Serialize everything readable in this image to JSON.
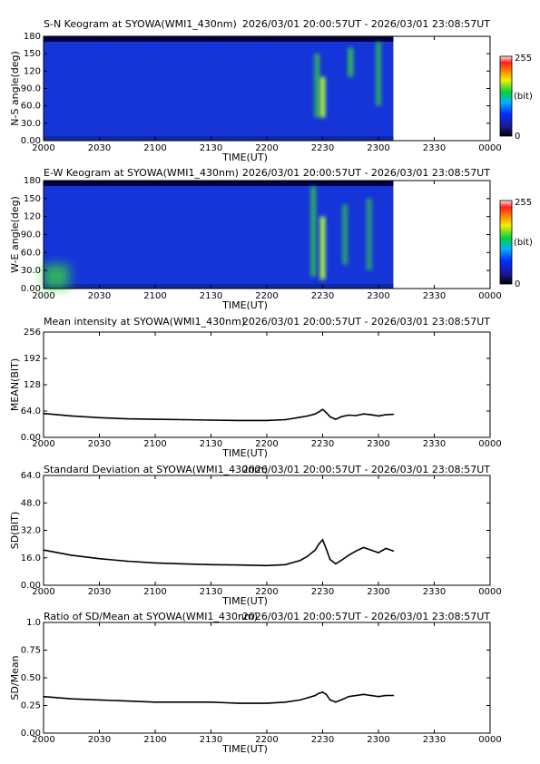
{
  "panels": [
    {
      "type": "keogram",
      "title": "S-N Keogram at SYOWA(WMI1_430nm)",
      "time_range": "2026/03/01 20:00:57UT - 2026/03/01 23:08:57UT",
      "ylabel": "N-S angle(deg)",
      "yticks": [
        "0.00",
        "30.0",
        "60.0",
        "90.0",
        "120",
        "150",
        "180"
      ],
      "xlabel": "TIME(UT)",
      "xticks": [
        "2000",
        "2030",
        "2100",
        "2130",
        "2200",
        "2230",
        "2300",
        "2330",
        "0000"
      ],
      "colorbar": {
        "max": "255",
        "unit": "(bit)",
        "min": "0"
      }
    },
    {
      "type": "keogram",
      "title": "E-W Keogram at SYOWA(WMI1_430nm)",
      "time_range": "2026/03/01 20:00:57UT - 2026/03/01 23:08:57UT",
      "ylabel": "W-E angle(deg)",
      "yticks": [
        "0.00",
        "30.0",
        "60.0",
        "90.0",
        "120",
        "150",
        "180"
      ],
      "xlabel": "TIME(UT)",
      "xticks": [
        "2000",
        "2030",
        "2100",
        "2130",
        "2200",
        "2230",
        "2300",
        "2330",
        "0000"
      ],
      "colorbar": {
        "max": "255",
        "unit": "(bit)",
        "min": "0"
      }
    },
    {
      "type": "line",
      "title": "Mean intensity at SYOWA(WMI1_430nm)",
      "time_range": "2026/03/01 20:00:57UT - 2026/03/01 23:08:57UT",
      "ylabel": "MEAN(BIT)",
      "yticks": [
        "0.00",
        "64.0",
        "128",
        "192",
        "256"
      ],
      "xlabel": "TIME(UT)",
      "xticks": [
        "2000",
        "2030",
        "2100",
        "2130",
        "2200",
        "2230",
        "2300",
        "2330",
        "0000"
      ]
    },
    {
      "type": "line",
      "title": "Standard Deviation at SYOWA(WMI1_430nm)",
      "time_range": "2026/03/01 20:00:57UT - 2026/03/01 23:08:57UT",
      "ylabel": "SD(BIT)",
      "yticks": [
        "0.00",
        "16.0",
        "32.0",
        "48.0",
        "64.0"
      ],
      "xlabel": "TIME(UT)",
      "xticks": [
        "2000",
        "2030",
        "2100",
        "2130",
        "2200",
        "2230",
        "2300",
        "2330",
        "0000"
      ]
    },
    {
      "type": "line",
      "title": "Ratio of SD/Mean at SYOWA(WMI1_430nm)",
      "time_range": "2026/03/01 20:00:57UT - 2026/03/01 23:08:57UT",
      "ylabel": "SD/Mean",
      "yticks": [
        "0.00",
        "0.25",
        "0.50",
        "0.75",
        "1.0"
      ],
      "xlabel": "TIME(UT)",
      "xticks": [
        "2000",
        "2030",
        "2100",
        "2130",
        "2200",
        "2230",
        "2300",
        "2330",
        "0000"
      ]
    }
  ],
  "colors": {
    "keogram_background": "#1535d8",
    "keogram_top_band": "#000040",
    "aurora": "#38d838",
    "line": "#000000"
  },
  "chart_data": [
    {
      "type": "heatmap",
      "title": "S-N Keogram at SYOWA(WMI1_430nm)",
      "xlabel": "TIME(UT)",
      "ylabel": "N-S angle(deg)",
      "xlim": [
        "20:00",
        "24:00"
      ],
      "ylim": [
        0,
        180
      ],
      "data_end": "23:08",
      "color_scale": [
        0,
        255
      ],
      "features": [
        {
          "time": "22:27",
          "angle_range": [
            40,
            150
          ],
          "intensity": 150
        },
        {
          "time": "22:30",
          "angle_range": [
            40,
            110
          ],
          "intensity": 230
        },
        {
          "time": "22:45",
          "angle_range": [
            110,
            160
          ],
          "intensity": 170
        },
        {
          "time": "23:00",
          "angle_range": [
            60,
            170
          ],
          "intensity": 140
        }
      ]
    },
    {
      "type": "heatmap",
      "title": "E-W Keogram at SYOWA(WMI1_430nm)",
      "xlabel": "TIME(UT)",
      "ylabel": "W-E angle(deg)",
      "xlim": [
        "20:00",
        "24:00"
      ],
      "ylim": [
        0,
        180
      ],
      "data_end": "23:08",
      "color_scale": [
        0,
        255
      ],
      "features": [
        {
          "time": "20:00",
          "angle_range": [
            0,
            40
          ],
          "intensity": 160
        },
        {
          "time": "22:25",
          "angle_range": [
            20,
            170
          ],
          "intensity": 150
        },
        {
          "time": "22:30",
          "angle_range": [
            15,
            120
          ],
          "intensity": 230
        },
        {
          "time": "22:42",
          "angle_range": [
            40,
            140
          ],
          "intensity": 130
        },
        {
          "time": "22:55",
          "angle_range": [
            30,
            150
          ],
          "intensity": 120
        }
      ]
    },
    {
      "type": "line",
      "title": "Mean intensity at SYOWA(WMI1_430nm)",
      "xlabel": "TIME(UT)",
      "ylabel": "MEAN(BIT)",
      "xlim": [
        "20:00",
        "24:00"
      ],
      "ylim": [
        0,
        256
      ],
      "x": [
        "20:00",
        "20:15",
        "20:30",
        "20:45",
        "21:00",
        "21:15",
        "21:30",
        "21:45",
        "22:00",
        "22:10",
        "22:18",
        "22:22",
        "22:26",
        "22:28",
        "22:30",
        "22:32",
        "22:34",
        "22:37",
        "22:40",
        "22:44",
        "22:48",
        "22:52",
        "22:56",
        "23:00",
        "23:04",
        "23:08"
      ],
      "values": [
        58,
        52,
        48,
        45,
        44,
        43,
        42,
        41,
        41,
        43,
        49,
        52,
        57,
        62,
        68,
        60,
        50,
        44,
        50,
        54,
        53,
        57,
        55,
        52,
        55,
        56
      ]
    },
    {
      "type": "line",
      "title": "Standard Deviation at SYOWA(WMI1_430nm)",
      "xlabel": "TIME(UT)",
      "ylabel": "SD(BIT)",
      "xlim": [
        "20:00",
        "24:00"
      ],
      "ylim": [
        0,
        64
      ],
      "x": [
        "20:00",
        "20:15",
        "20:30",
        "20:45",
        "21:00",
        "21:15",
        "21:30",
        "21:45",
        "22:00",
        "22:10",
        "22:18",
        "22:22",
        "22:26",
        "22:28",
        "22:30",
        "22:32",
        "22:34",
        "22:37",
        "22:40",
        "22:44",
        "22:48",
        "22:52",
        "22:56",
        "23:00",
        "23:04",
        "23:08"
      ],
      "values": [
        20.5,
        17.5,
        15.5,
        14.0,
        13.0,
        12.5,
        12.0,
        11.8,
        11.5,
        12.0,
        14.5,
        17.0,
        20.5,
        24.0,
        26.5,
        21.0,
        15.0,
        12.5,
        14.5,
        17.5,
        20.0,
        22.0,
        20.5,
        19.0,
        21.5,
        20.0
      ]
    },
    {
      "type": "line",
      "title": "Ratio of SD/Mean at SYOWA(WMI1_430nm)",
      "xlabel": "TIME(UT)",
      "ylabel": "SD/Mean",
      "xlim": [
        "20:00",
        "24:00"
      ],
      "ylim": [
        0,
        1.0
      ],
      "x": [
        "20:00",
        "20:15",
        "20:30",
        "20:45",
        "21:00",
        "21:15",
        "21:30",
        "21:45",
        "22:00",
        "22:10",
        "22:18",
        "22:22",
        "22:26",
        "22:28",
        "22:30",
        "22:32",
        "22:34",
        "22:37",
        "22:40",
        "22:44",
        "22:48",
        "22:52",
        "22:56",
        "23:00",
        "23:04",
        "23:08"
      ],
      "values": [
        0.33,
        0.31,
        0.3,
        0.29,
        0.28,
        0.28,
        0.28,
        0.27,
        0.27,
        0.28,
        0.3,
        0.32,
        0.34,
        0.36,
        0.37,
        0.35,
        0.3,
        0.28,
        0.3,
        0.33,
        0.34,
        0.35,
        0.34,
        0.33,
        0.34,
        0.34
      ]
    }
  ]
}
